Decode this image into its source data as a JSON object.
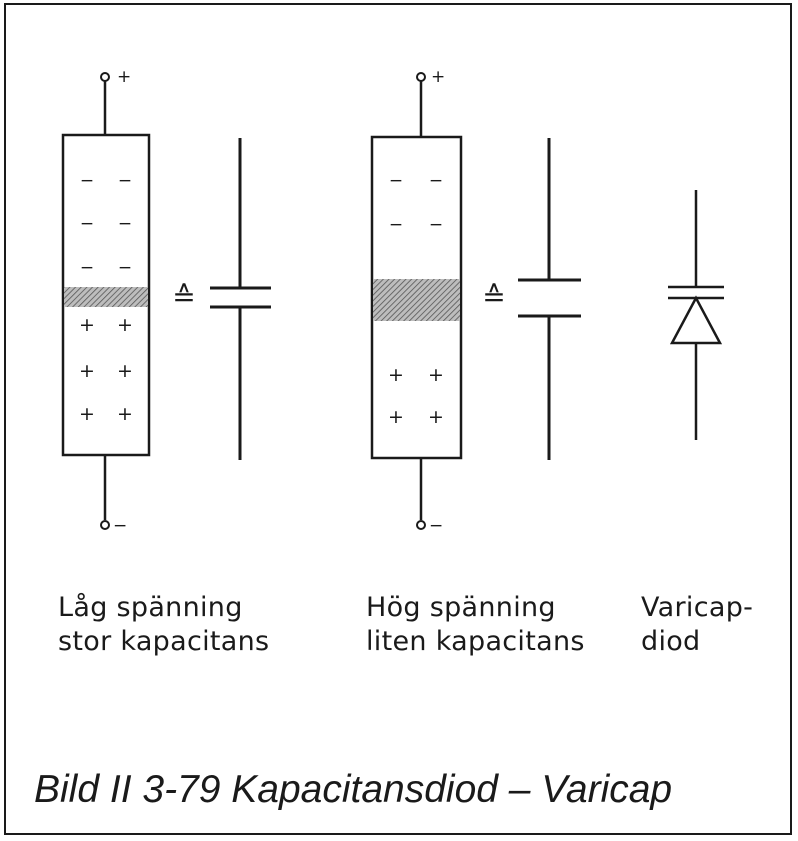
{
  "panels": [
    {
      "id": "low-voltage",
      "terminal_top": "+",
      "terminal_bottom": "−",
      "charge_top": "−",
      "charge_bottom": "+",
      "equivalence_symbol": "≙",
      "caption_line1": "Låg spänning",
      "caption_line2": "stor kapacitans"
    },
    {
      "id": "high-voltage",
      "terminal_top": "+",
      "terminal_bottom": "−",
      "charge_top": "−",
      "charge_bottom": "+",
      "equivalence_symbol": "≙",
      "caption_line1": "Hög spänning",
      "caption_line2": "liten kapacitans"
    }
  ],
  "varicap": {
    "caption_line1": "Varicap-",
    "caption_line2": "diod"
  },
  "figure_caption": "Bild II 3-79  Kapacitansdiod – Varicap",
  "colors": {
    "ink": "#1a1a1a",
    "paper": "#ffffff"
  }
}
